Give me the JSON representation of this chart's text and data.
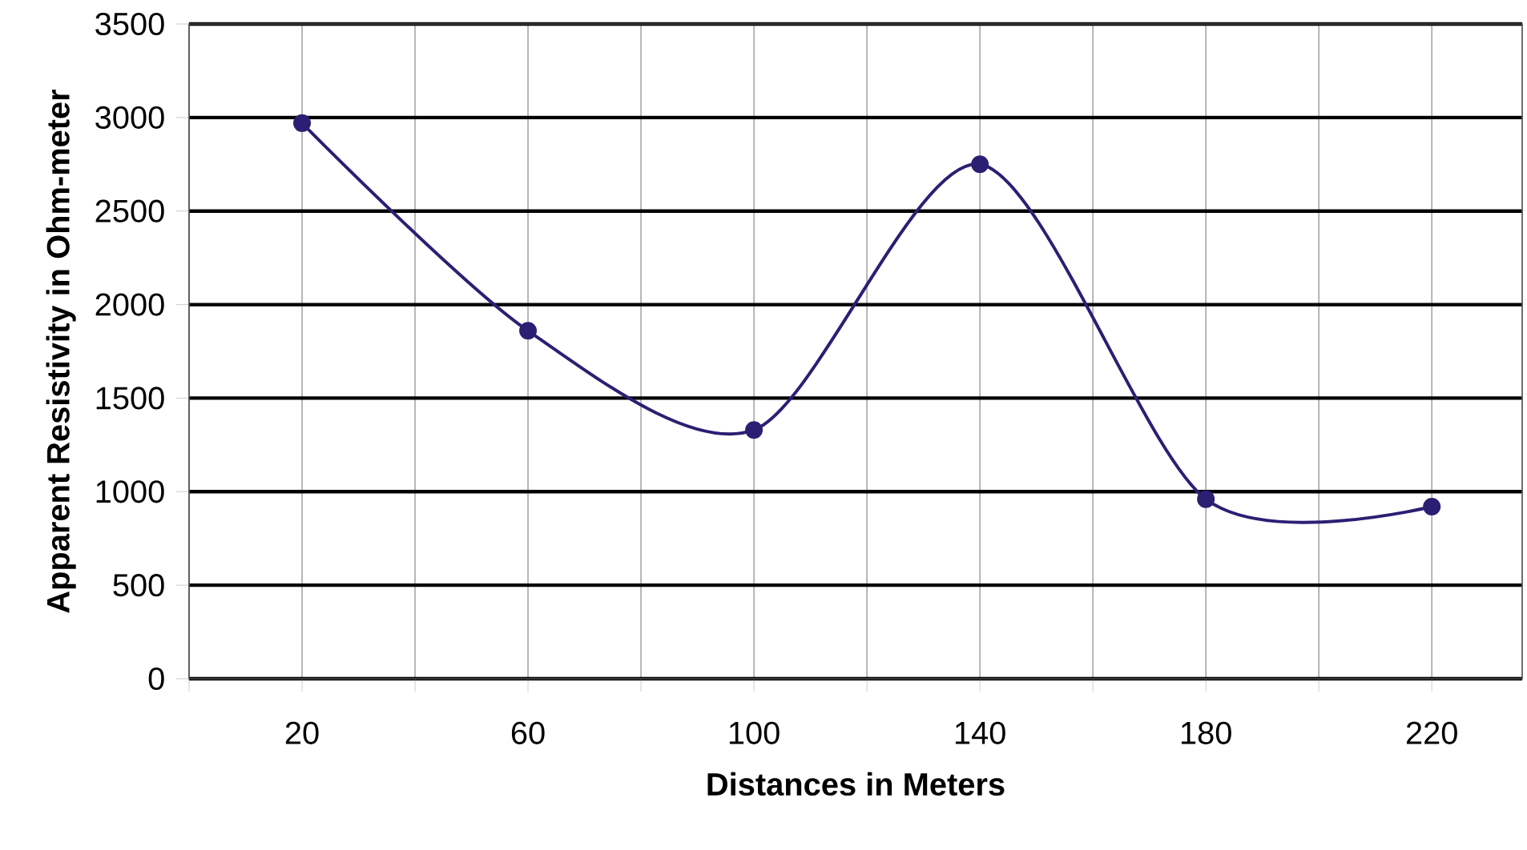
{
  "chart_data": {
    "type": "line",
    "xlabel": "Distances in Meters",
    "ylabel": "Apparent Resistivity in Ohm-meter",
    "x": [
      20,
      60,
      100,
      140,
      180,
      220
    ],
    "series": [
      {
        "color": "#2b1f73",
        "values": [
          2970,
          1860,
          1330,
          2750,
          960,
          920
        ]
      }
    ],
    "xlim": [
      0,
      236
    ],
    "xticks": [
      {
        "value": 0,
        "label": null
      },
      20,
      {
        "value": 40,
        "label": null
      },
      60,
      {
        "value": 80,
        "label": null
      },
      100,
      {
        "value": 120,
        "label": null
      },
      140,
      {
        "value": 160,
        "label": null
      },
      180,
      {
        "value": 200,
        "label": null
      },
      220
    ],
    "ylim": [
      0,
      3500
    ],
    "yticks": [
      0,
      500,
      1000,
      1500,
      2000,
      2500,
      3000,
      3500
    ],
    "grid": true,
    "marker": "circle",
    "line_style": "solid"
  }
}
